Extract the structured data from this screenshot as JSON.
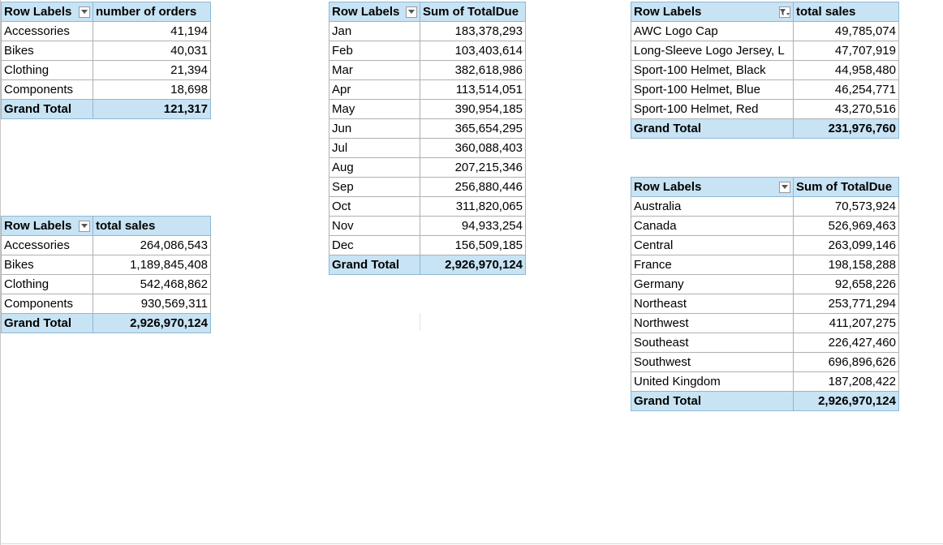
{
  "pivot_category_orders": {
    "row_header": "Row Labels",
    "value_header": "number of orders",
    "rows": [
      {
        "label": "Accessories",
        "value": "41,194"
      },
      {
        "label": "Bikes",
        "value": "40,031"
      },
      {
        "label": "Clothing",
        "value": "21,394"
      },
      {
        "label": "Components",
        "value": "18,698"
      }
    ],
    "total_label": "Grand Total",
    "total_value": "121,317"
  },
  "pivot_category_sales": {
    "row_header": "Row Labels",
    "value_header": "total sales",
    "rows": [
      {
        "label": "Accessories",
        "value": "264,086,543"
      },
      {
        "label": "Bikes",
        "value": "1,189,845,408"
      },
      {
        "label": "Clothing",
        "value": "542,468,862"
      },
      {
        "label": "Components",
        "value": "930,569,311"
      }
    ],
    "total_label": "Grand Total",
    "total_value": "2,926,970,124"
  },
  "pivot_month": {
    "row_header": "Row Labels",
    "value_header": "Sum of TotalDue",
    "rows": [
      {
        "label": "Jan",
        "value": "183,378,293"
      },
      {
        "label": "Feb",
        "value": "103,403,614"
      },
      {
        "label": "Mar",
        "value": "382,618,986"
      },
      {
        "label": "Apr",
        "value": "113,514,051"
      },
      {
        "label": "May",
        "value": "390,954,185"
      },
      {
        "label": "Jun",
        "value": "365,654,295"
      },
      {
        "label": "Jul",
        "value": "360,088,403"
      },
      {
        "label": "Aug",
        "value": "207,215,346"
      },
      {
        "label": "Sep",
        "value": "256,880,446"
      },
      {
        "label": "Oct",
        "value": "311,820,065"
      },
      {
        "label": "Nov",
        "value": "94,933,254"
      },
      {
        "label": "Dec",
        "value": "156,509,185"
      }
    ],
    "total_label": "Grand Total",
    "total_value": "2,926,970,124"
  },
  "pivot_product": {
    "row_header": "Row Labels",
    "value_header": "total sales",
    "rows": [
      {
        "label": "AWC Logo Cap",
        "value": "49,785,074"
      },
      {
        "label": "Long-Sleeve Logo Jersey, L",
        "value": "47,707,919"
      },
      {
        "label": "Sport-100 Helmet, Black",
        "value": "44,958,480"
      },
      {
        "label": "Sport-100 Helmet, Blue",
        "value": "46,254,771"
      },
      {
        "label": "Sport-100 Helmet, Red",
        "value": "43,270,516"
      }
    ],
    "total_label": "Grand Total",
    "total_value": "231,976,760"
  },
  "pivot_region": {
    "row_header": "Row Labels",
    "value_header": "Sum of TotalDue",
    "rows": [
      {
        "label": "Australia",
        "value": "70,573,924"
      },
      {
        "label": "Canada",
        "value": "526,969,463"
      },
      {
        "label": "Central",
        "value": "263,099,146"
      },
      {
        "label": "France",
        "value": "198,158,288"
      },
      {
        "label": "Germany",
        "value": "92,658,226"
      },
      {
        "label": "Northeast",
        "value": "253,771,294"
      },
      {
        "label": "Northwest",
        "value": "411,207,275"
      },
      {
        "label": "Southeast",
        "value": "226,427,460"
      },
      {
        "label": "Southwest",
        "value": "696,896,626"
      },
      {
        "label": "United Kingdom",
        "value": "187,208,422"
      }
    ],
    "total_label": "Grand Total",
    "total_value": "2,926,970,124"
  }
}
